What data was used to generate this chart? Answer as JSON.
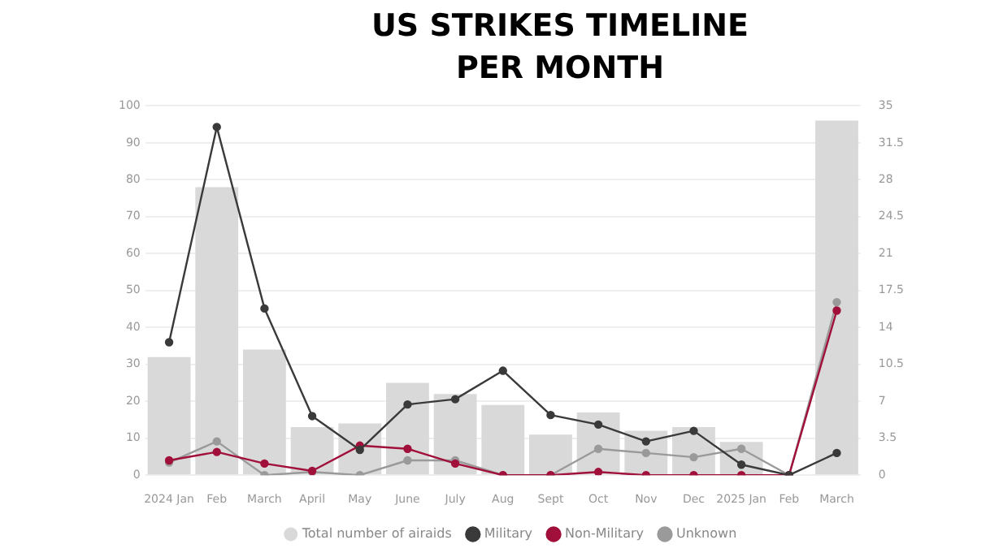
{
  "chart_data": {
    "type": "bar",
    "title": "US STRIKES TIMELINE PER MONTH",
    "categories": [
      "2024 Jan",
      "Feb",
      "March",
      "April",
      "May",
      "June",
      "July",
      "Aug",
      "Sept",
      "Oct",
      "Nov",
      "Dec",
      "2025 Jan",
      "Feb",
      "March"
    ],
    "series": [
      {
        "name": "Total number of airaids",
        "color": "#d9d9d9",
        "values": [
          32,
          78,
          34,
          13,
          14,
          25,
          22,
          19,
          11,
          17,
          12,
          13,
          9,
          0,
          96
        ]
      },
      {
        "name": "Military",
        "type": "line",
        "axis": "y2",
        "color": "#3a3a3a",
        "values": [
          12.6,
          33,
          15.8,
          5.6,
          2.4,
          6.7,
          7.2,
          9.9,
          5.7,
          4.8,
          3.2,
          4.2,
          1,
          0,
          2.1
        ]
      },
      {
        "name": "Non-Military",
        "type": "line",
        "axis": "y2",
        "color": "#a0103a",
        "values": [
          1.4,
          2.2,
          1.1,
          0.4,
          2.8,
          2.5,
          1.1,
          0,
          0,
          0.3,
          0,
          0,
          0,
          0,
          15.6
        ]
      },
      {
        "name": "Unknown",
        "type": "line",
        "axis": "y2",
        "color": "#9a9a9a",
        "values": [
          1.2,
          3.2,
          0,
          0.3,
          0,
          1.4,
          1.4,
          0,
          0,
          2.5,
          2.1,
          1.7,
          2.5,
          0,
          16.4
        ]
      }
    ],
    "ylim": [
      0,
      100
    ],
    "yticks": [
      0,
      10,
      20,
      30,
      40,
      50,
      60,
      70,
      80,
      90,
      100
    ],
    "y2lim": [
      0,
      35
    ],
    "y2ticks": [
      0,
      3.5,
      7,
      10.5,
      14,
      17.5,
      21,
      24.5,
      28,
      31.5,
      35
    ],
    "grid": "y",
    "legend": "bottom",
    "marker": "circle",
    "line_style": "solid"
  }
}
